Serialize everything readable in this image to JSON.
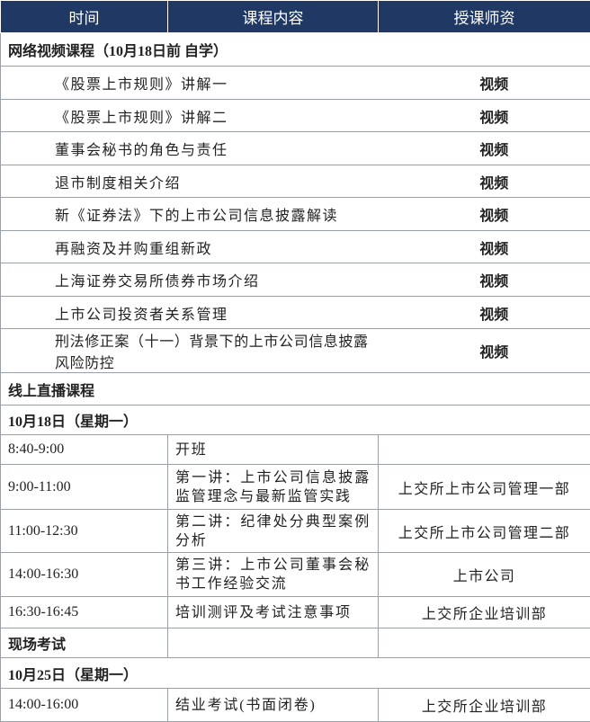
{
  "table": {
    "header": [
      "时间",
      "课程内容",
      "授课师资"
    ],
    "rows": [
      [
        "网络视频课程（10月18日前 自学）"
      ],
      [
        "《股票上市规则》讲解一",
        "视频"
      ],
      [
        "《股票上市规则》讲解二",
        "视频"
      ],
      [
        "董事会秘书的角色与责任",
        "视频"
      ],
      [
        "退市制度相关介绍",
        "视频"
      ],
      [
        "新《证券法》下的上市公司信息披露解读",
        "视频"
      ],
      [
        "再融资及并购重组新政",
        "视频"
      ],
      [
        "上海证券交易所债券市场介绍",
        "视频"
      ],
      [
        "上市公司投资者关系管理",
        "视频"
      ],
      [
        "刑法修正案（十一）背景下的上市公司信息披露风险防控",
        "视频"
      ],
      [
        "线上直播课程"
      ],
      [
        "10月18日（星期一）"
      ],
      [
        "8:40-9:00",
        "开班"
      ],
      [
        "9:00-11:00",
        "第一讲：上市公司信息披露监管理念与最新监管实践",
        "上交所上市公司管理一部"
      ],
      [
        "11:00-12:30",
        "第二讲：纪律处分典型案例分析",
        "上交所上市公司管理二部"
      ],
      [
        "14:00-16:30",
        "第三讲：上市公司董事会秘书工作经验交流",
        "上市公司"
      ],
      [
        "16:30-16:45",
        "培训测评及考试注意事项",
        "上交所企业培训部"
      ],
      [
        "现场考试"
      ],
      [
        "10月25日（星期一）"
      ],
      [
        "14:00-16:00",
        "结业考试(书面闭卷)",
        "上交所企业培训部"
      ]
    ]
  }
}
